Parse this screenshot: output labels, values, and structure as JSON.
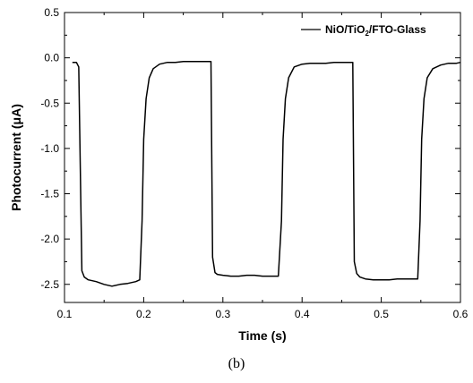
{
  "chart_data": {
    "type": "line",
    "title": "",
    "xlabel": "Time (s)",
    "ylabel": "Photocurrent (μA)",
    "xlim": [
      0.1,
      0.6
    ],
    "ylim": [
      -2.7,
      0.5
    ],
    "xticks": [
      0.1,
      0.2,
      0.3,
      0.4,
      0.5,
      0.6
    ],
    "xtick_labels": [
      "0.1",
      "0.2",
      "0.3",
      "0.4",
      "0.5",
      "0.6"
    ],
    "yticks": [
      0.5,
      0.0,
      -0.5,
      -1.0,
      -1.5,
      -2.0,
      -2.5
    ],
    "ytick_labels": [
      "0.5",
      "0.0",
      "-0.5",
      "-1.0",
      "-1.5",
      "-2.0",
      "-2.5"
    ],
    "grid": false,
    "legend_position": "top-right",
    "legend": {
      "prefix": "NiO/TiO",
      "subscript": "2",
      "suffix": "/FTO-Glass"
    },
    "series": [
      {
        "name": "NiO/TiO2/FTO-Glass",
        "color": "#000000",
        "x": [
          0.11,
          0.115,
          0.118,
          0.122,
          0.125,
          0.13,
          0.14,
          0.15,
          0.16,
          0.17,
          0.18,
          0.19,
          0.195,
          0.198,
          0.2,
          0.203,
          0.207,
          0.212,
          0.22,
          0.23,
          0.24,
          0.25,
          0.26,
          0.27,
          0.28,
          0.285,
          0.287,
          0.29,
          0.293,
          0.3,
          0.31,
          0.32,
          0.33,
          0.34,
          0.35,
          0.36,
          0.37,
          0.374,
          0.376,
          0.379,
          0.383,
          0.39,
          0.4,
          0.41,
          0.42,
          0.43,
          0.44,
          0.45,
          0.46,
          0.464,
          0.466,
          0.469,
          0.473,
          0.48,
          0.49,
          0.5,
          0.51,
          0.52,
          0.53,
          0.54,
          0.546,
          0.549,
          0.551,
          0.554,
          0.558,
          0.565,
          0.575,
          0.585,
          0.595,
          0.6
        ],
        "y": [
          -0.05,
          -0.05,
          -0.1,
          -2.35,
          -2.42,
          -2.45,
          -2.47,
          -2.5,
          -2.52,
          -2.5,
          -2.49,
          -2.47,
          -2.45,
          -1.8,
          -0.9,
          -0.45,
          -0.22,
          -0.12,
          -0.07,
          -0.05,
          -0.05,
          -0.04,
          -0.04,
          -0.04,
          -0.04,
          -0.04,
          -2.2,
          -2.37,
          -2.39,
          -2.4,
          -2.41,
          -2.41,
          -2.4,
          -2.4,
          -2.41,
          -2.41,
          -2.41,
          -1.8,
          -0.9,
          -0.45,
          -0.22,
          -0.1,
          -0.07,
          -0.06,
          -0.06,
          -0.06,
          -0.05,
          -0.05,
          -0.05,
          -0.05,
          -2.25,
          -2.38,
          -2.42,
          -2.44,
          -2.45,
          -2.45,
          -2.45,
          -2.44,
          -2.44,
          -2.44,
          -2.44,
          -1.8,
          -0.9,
          -0.45,
          -0.22,
          -0.12,
          -0.08,
          -0.06,
          -0.06,
          -0.05
        ]
      }
    ]
  },
  "caption": "(b)"
}
